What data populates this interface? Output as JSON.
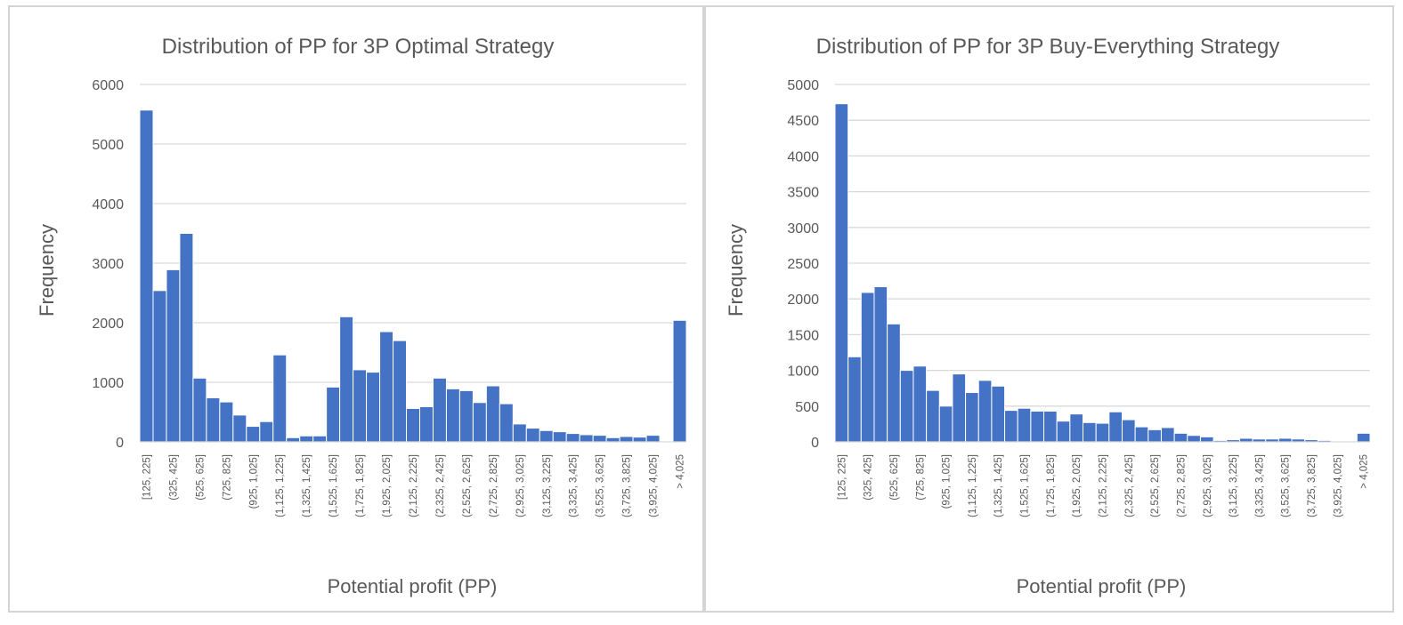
{
  "charts": [
    {
      "title": "Distribution of PP for 3P Optimal Strategy",
      "xlabel": "Potential profit (PP)",
      "ylabel": "Frequency"
    },
    {
      "title": "Distribution of PP for 3P Buy-Everything Strategy",
      "xlabel": "Potential profit (PP)",
      "ylabel": "Frequency"
    }
  ],
  "chart_data": [
    {
      "type": "bar",
      "title": "Distribution of PP for 3P Optimal Strategy",
      "xlabel": "Potential profit (PP)",
      "ylabel": "Frequency",
      "ylim": [
        0,
        6000
      ],
      "yticks": [
        "0",
        "1000",
        "2000",
        "3000",
        "4000",
        "5000",
        "6000"
      ],
      "grid": true,
      "legend": "none",
      "categories": [
        "[125, 225]",
        "(225, 325]",
        "(325, 425]",
        "(425, 525]",
        "(525, 625]",
        "(625, 725]",
        "(725, 825]",
        "(825, 925]",
        "(925, 1,025]",
        "(1,025, 1,125]",
        "(1,125, 1,225]",
        "(1,225, 1,325]",
        "(1,325, 1,425]",
        "(1,425, 1,525]",
        "(1,525, 1,625]",
        "(1,625, 1,725]",
        "(1,725, 1,825]",
        "(1,825, 1,925]",
        "(1,925, 2,025]",
        "(2,025, 2,125]",
        "(2,125, 2,225]",
        "(2,225, 2,325]",
        "(2,325, 2,425]",
        "(2,425, 2,525]",
        "(2,525, 2,625]",
        "(2,625, 2,725]",
        "(2,725, 2,825]",
        "(2,825, 2,925]",
        "(2,925, 3,025]",
        "(3,025, 3,125]",
        "(3,125, 3,225]",
        "(3,225, 3,325]",
        "(3,325, 3,425]",
        "(3,425, 3,525]",
        "(3,525, 3,625]",
        "(3,625, 3,725]",
        "(3,725, 3,825]",
        "(3,825, 3,925]",
        "(3,925, 4,025]",
        "(4,025, 4,125]",
        "> 4,025"
      ],
      "shown_tick_labels": [
        "[125, 225]",
        "(325, 425]",
        "(525, 625]",
        "(725, 825]",
        "(925, 1,025]",
        "(1,125, 1,225]",
        "(1,325, 1,425]",
        "(1,525, 1,625]",
        "(1,725, 1,825]",
        "(1,925, 2,025]",
        "(2,125, 2,225]",
        "(2,325, 2,425]",
        "(2,525, 2,625]",
        "(2,725, 2,825]",
        "(2,925, 3,025]",
        "(3,125, 3,225]",
        "(3,325, 3,425]",
        "(3,525, 3,625]",
        "(3,725, 3,825]",
        "(3,925, 4,025]",
        "> 4,025"
      ],
      "values": [
        5570,
        2540,
        2890,
        3500,
        1070,
        740,
        670,
        450,
        260,
        340,
        1460,
        70,
        100,
        100,
        920,
        2100,
        1210,
        1170,
        1850,
        1700,
        560,
        590,
        1070,
        890,
        860,
        660,
        940,
        640,
        300,
        230,
        190,
        170,
        140,
        120,
        110,
        70,
        90,
        80,
        110,
        0,
        2040
      ]
    },
    {
      "type": "bar",
      "title": "Distribution of PP for 3P Buy-Everything Strategy",
      "xlabel": "Potential profit (PP)",
      "ylabel": "Frequency",
      "ylim": [
        0,
        5000
      ],
      "yticks": [
        "0",
        "500",
        "1000",
        "1500",
        "2000",
        "2500",
        "3000",
        "3500",
        "4000",
        "4500",
        "5000"
      ],
      "grid": true,
      "legend": "none",
      "categories": [
        "[125, 225]",
        "(225, 325]",
        "(325, 425]",
        "(425, 525]",
        "(525, 625]",
        "(625, 725]",
        "(725, 825]",
        "(825, 925]",
        "(925, 1,025]",
        "(1,025, 1,125]",
        "(1,125, 1,225]",
        "(1,225, 1,325]",
        "(1,325, 1,425]",
        "(1,425, 1,525]",
        "(1,525, 1,625]",
        "(1,625, 1,725]",
        "(1,725, 1,825]",
        "(1,825, 1,925]",
        "(1,925, 2,025]",
        "(2,025, 2,125]",
        "(2,125, 2,225]",
        "(2,225, 2,325]",
        "(2,325, 2,425]",
        "(2,425, 2,525]",
        "(2,525, 2,625]",
        "(2,625, 2,725]",
        "(2,725, 2,825]",
        "(2,825, 2,925]",
        "(2,925, 3,025]",
        "(3,025, 3,125]",
        "(3,125, 3,225]",
        "(3,225, 3,325]",
        "(3,325, 3,425]",
        "(3,425, 3,525]",
        "(3,525, 3,625]",
        "(3,625, 3,725]",
        "(3,725, 3,825]",
        "(3,825, 3,925]",
        "(3,925, 4,025]",
        "(4,025, 4,125]",
        "> 4,025"
      ],
      "shown_tick_labels": [
        "[125, 225]",
        "(325, 425]",
        "(525, 625]",
        "(725, 825]",
        "(925, 1,025]",
        "(1,125, 1,225]",
        "(1,325, 1,425]",
        "(1,525, 1,625]",
        "(1,725, 1,825]",
        "(1,925, 2,025]",
        "(2,125, 2,225]",
        "(2,325, 2,425]",
        "(2,525, 2,625]",
        "(2,725, 2,825]",
        "(2,925, 3,025]",
        "(3,125, 3,225]",
        "(3,325, 3,425]",
        "(3,525, 3,625]",
        "(3,725, 3,825]",
        "(3,925, 4,025]",
        "> 4,025"
      ],
      "values": [
        4730,
        1190,
        2090,
        2170,
        1650,
        1000,
        1060,
        720,
        500,
        950,
        690,
        860,
        780,
        440,
        470,
        430,
        430,
        290,
        390,
        270,
        260,
        420,
        310,
        210,
        170,
        200,
        120,
        90,
        70,
        20,
        30,
        50,
        40,
        40,
        50,
        40,
        30,
        20,
        10,
        10,
        120
      ]
    }
  ]
}
